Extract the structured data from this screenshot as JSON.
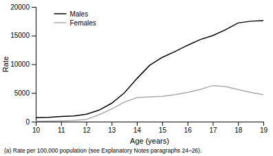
{
  "chart_data": {
    "type": "line",
    "xlabel": "Age (years)",
    "ylabel": "Rate",
    "footnote": "(a) Rate per 100,000 population (see Explanatory Notes paragraphs 24–26).",
    "x": [
      10,
      10.5,
      11,
      11.5,
      12,
      12.5,
      13,
      13.5,
      14,
      14.5,
      15,
      15.5,
      16,
      16.5,
      17,
      17.5,
      18,
      18.5,
      19
    ],
    "series": [
      {
        "name": "Males",
        "color": "#000000",
        "values": [
          700,
          750,
          900,
          1000,
          1300,
          2000,
          3200,
          5000,
          7500,
          9800,
          11200,
          12200,
          13300,
          14300,
          15000,
          16000,
          17200,
          17500,
          17600
        ]
      },
      {
        "name": "Females",
        "color": "#aaaaaa",
        "values": [
          50,
          80,
          120,
          200,
          400,
          1200,
          2200,
          3400,
          4200,
          4300,
          4400,
          4700,
          5100,
          5600,
          6300,
          6100,
          5600,
          5100,
          4700
        ]
      }
    ],
    "xlim": [
      10,
      19
    ],
    "ylim": [
      0,
      20000
    ],
    "xticks": [
      10,
      11,
      12,
      13,
      14,
      15,
      16,
      17,
      18,
      19
    ],
    "yticks": [
      0,
      5000,
      10000,
      15000,
      20000
    ],
    "legend": "upper left",
    "grid": false
  }
}
